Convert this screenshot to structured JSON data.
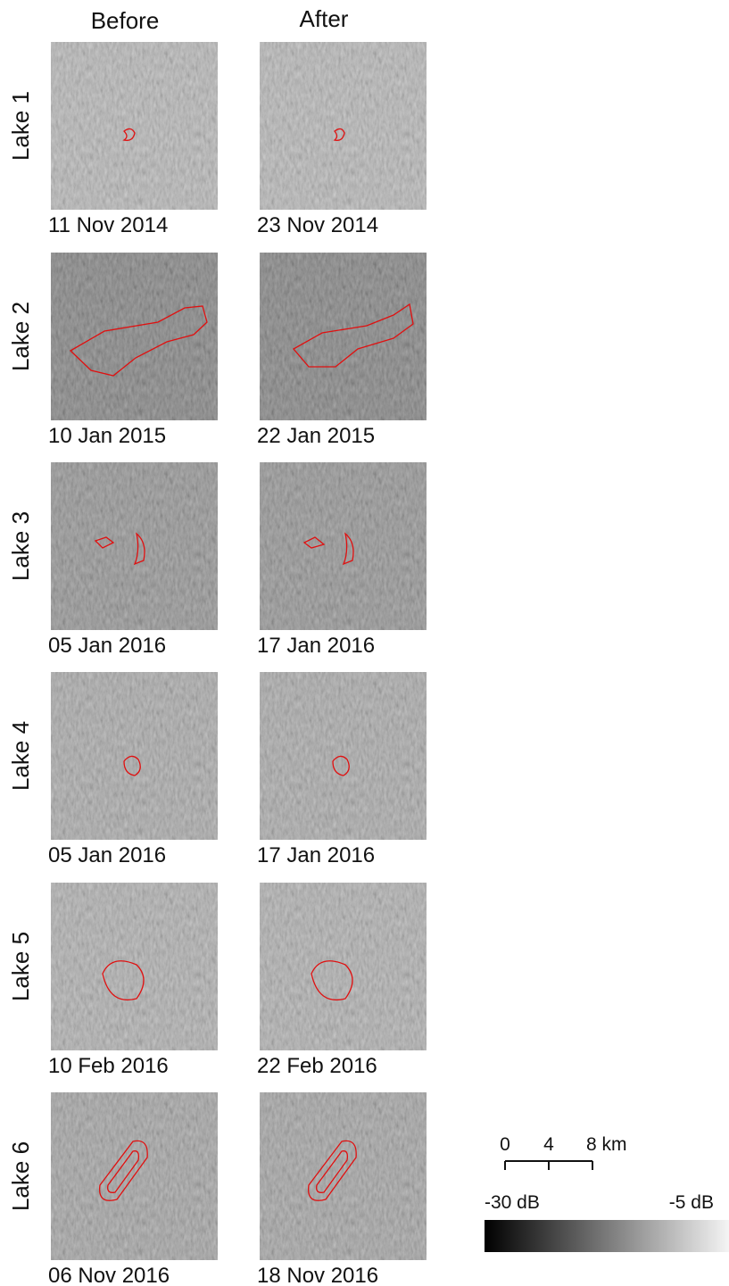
{
  "columns": [
    "Before",
    "After"
  ],
  "rows": [
    {
      "label": "Lake 1",
      "dates": [
        "11 Nov 2014",
        "23 Nov 2014"
      ]
    },
    {
      "label": "Lake 2",
      "dates": [
        "10 Jan 2015",
        "22 Jan 2015"
      ]
    },
    {
      "label": "Lake 3",
      "dates": [
        "05 Jan 2016",
        "17 Jan 2016"
      ]
    },
    {
      "label": "Lake 4",
      "dates": [
        "05 Jan 2016",
        "17 Jan 2016"
      ]
    },
    {
      "label": "Lake 5",
      "dates": [
        "10 Feb 2016",
        "22 Feb 2016"
      ]
    },
    {
      "label": "Lake 6",
      "dates": [
        "06 Nov 2016",
        "18 Nov 2016"
      ]
    }
  ],
  "scale_bar": {
    "ticks": [
      "0",
      "4",
      "8 km"
    ]
  },
  "colorbar": {
    "min_label": "-30 dB",
    "max_label": "-5 dB"
  }
}
